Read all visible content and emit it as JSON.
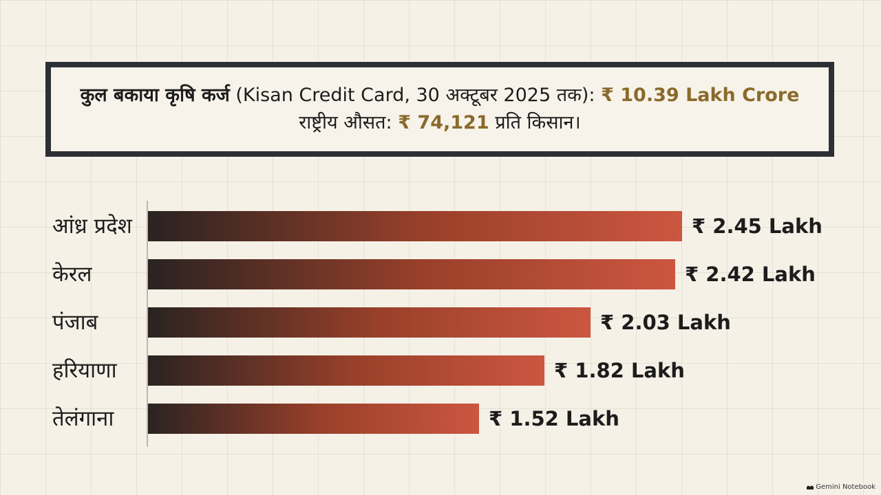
{
  "summary": {
    "line1_bold": "कुल बकाया कृषि कर्ज",
    "line1_text": " (Kisan Credit Card, 30 अक्टूबर 2025 तक): ",
    "line1_value": "₹ 10.39 Lakh Crore",
    "line2_text": "राष्ट्रीय औसत: ",
    "line2_value": "₹ 74,121",
    "line2_suffix": " प्रति किसान।"
  },
  "colors": {
    "accent_gold": "#8a6a2b",
    "bar_dark": "#2a2321",
    "bar_mid": "#99402a",
    "bar_end": "#cc5640",
    "frame": "#2b3035"
  },
  "chart_data": {
    "type": "bar",
    "orientation": "horizontal",
    "unit": "₹ Lakh",
    "categories": [
      "आंध्र प्रदेश",
      "केरल",
      "पंजाब",
      "हरियाणा",
      "तेलंगाना"
    ],
    "values": [
      2.45,
      2.42,
      2.03,
      1.82,
      1.52
    ],
    "value_labels": [
      "₹ 2.45 Lakh",
      "₹ 2.42 Lakh",
      "₹ 2.03 Lakh",
      "₹ 1.82 Lakh",
      "₹ 1.52 Lakh"
    ],
    "xlim": [
      0,
      2.45
    ],
    "grid": false,
    "legend": "none"
  },
  "watermark": {
    "text": "Gemini Notebook",
    "icon": "gemini-notebook-icon"
  }
}
